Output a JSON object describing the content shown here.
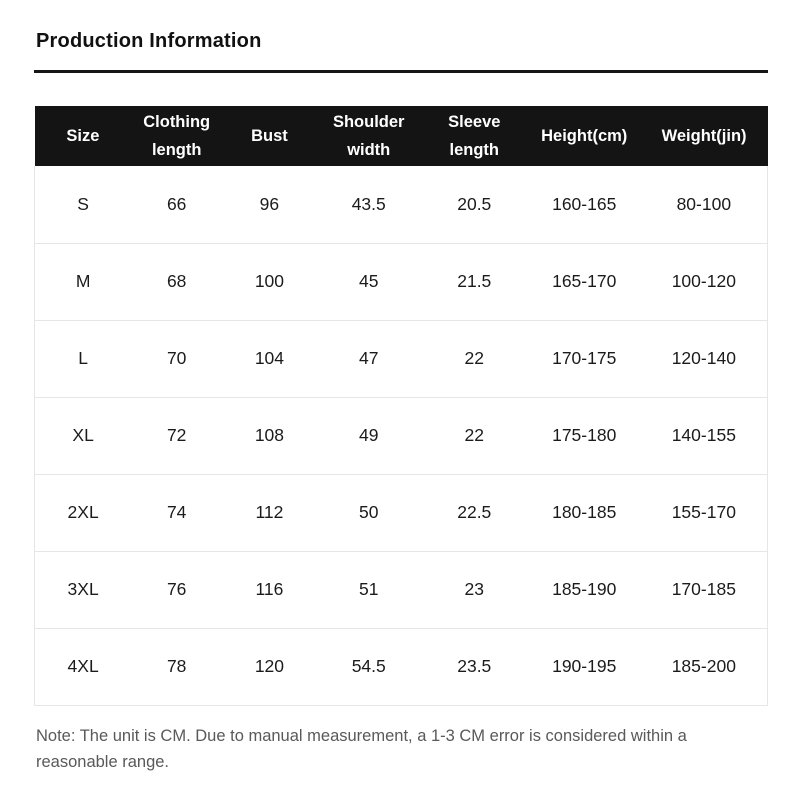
{
  "page_title": "Production Information",
  "chart_data": {
    "type": "table",
    "title": "Production Information",
    "columns": [
      "Size",
      "Clothing length",
      "Bust",
      "Shoulder width",
      "Sleeve length",
      "Height(cm)",
      "Weight(jin)"
    ],
    "rows": [
      [
        "S",
        "66",
        "96",
        "43.5",
        "20.5",
        "160-165",
        "80-100"
      ],
      [
        "M",
        "68",
        "100",
        "45",
        "21.5",
        "165-170",
        "100-120"
      ],
      [
        "L",
        "70",
        "104",
        "47",
        "22",
        "170-175",
        "120-140"
      ],
      [
        "XL",
        "72",
        "108",
        "49",
        "22",
        "175-180",
        "140-155"
      ],
      [
        "2XL",
        "74",
        "112",
        "50",
        "22.5",
        "180-185",
        "155-170"
      ],
      [
        "3XL",
        "76",
        "116",
        "51",
        "23",
        "185-190",
        "170-185"
      ],
      [
        "4XL",
        "78",
        "120",
        "54.5",
        "23.5",
        "190-195",
        "185-200"
      ]
    ],
    "note": "Note: The unit is CM. Due to manual measurement, a 1-3 CM error is considered within a reasonable range.",
    "layout_hints": {
      "header_bg": "#141414",
      "header_text_color": "#ffffff",
      "body_text_color": "#1b1b1b",
      "note_text_color": "#595959",
      "row_divider_color": "#e6e6e6",
      "title_rule_color": "#161616",
      "grid": "horizontal-only",
      "unit": "CM"
    }
  }
}
